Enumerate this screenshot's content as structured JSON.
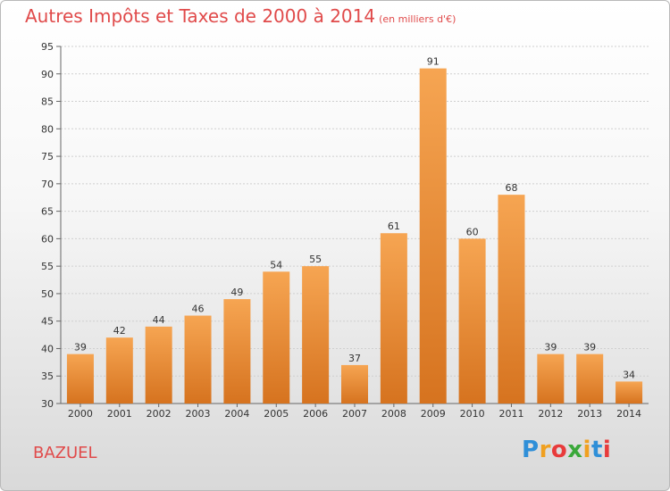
{
  "header": {
    "title": "Autres Impôts et Taxes de 2000 à 2014",
    "subtitle": "(en milliers d'€)"
  },
  "footer": {
    "place": "BAZUEL",
    "logo_letters": [
      "P",
      "r",
      "o",
      "x",
      "i",
      "t",
      "i"
    ],
    "logo_colors": [
      "#2f8fd8",
      "#f0a020",
      "#e83b3b",
      "#3aa83a",
      "#f0a020",
      "#2f8fd8",
      "#e83b3b"
    ]
  },
  "chart_data": {
    "type": "bar",
    "title": "Autres Impôts et Taxes de 2000 à 2014",
    "subtitle": "(en milliers d'€)",
    "xlabel": "",
    "ylabel": "",
    "categories": [
      "2000",
      "2001",
      "2002",
      "2003",
      "2004",
      "2005",
      "2006",
      "2007",
      "2008",
      "2009",
      "2010",
      "2011",
      "2012",
      "2013",
      "2014"
    ],
    "values": [
      39,
      42,
      44,
      46,
      49,
      54,
      55,
      37,
      61,
      91,
      60,
      68,
      39,
      39,
      34
    ],
    "ylim": [
      30,
      95
    ],
    "yticks": [
      30,
      35,
      40,
      45,
      50,
      55,
      60,
      65,
      70,
      75,
      80,
      85,
      90,
      95
    ],
    "grid": true,
    "bar_color_top": "#f6a552",
    "bar_color_bottom": "#d6731f"
  }
}
